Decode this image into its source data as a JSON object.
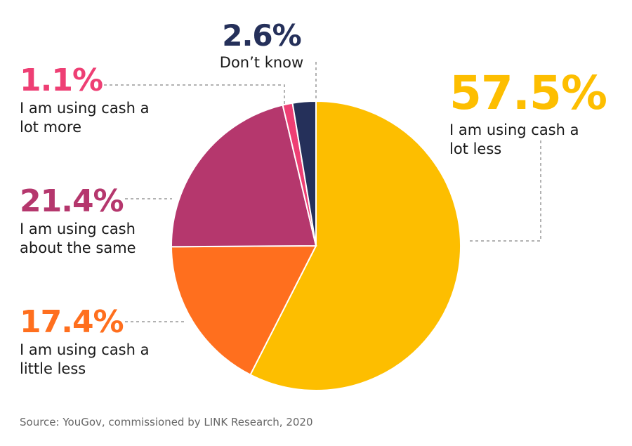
{
  "chart_data": {
    "type": "pie",
    "categories": [
      "I am using cash a lot less",
      "I am using cash a little less",
      "I am using cash about the same",
      "I am using cash a lot more",
      "Don’t know"
    ],
    "values": [
      57.5,
      17.4,
      21.4,
      1.1,
      2.6
    ],
    "value_labels": [
      "57.5%",
      "17.4%",
      "21.4%",
      "1.1%",
      "2.6%"
    ],
    "colors": [
      "#fdbe00",
      "#ff6f1e",
      "#b5376d",
      "#ee3f74",
      "#25305a"
    ],
    "source": "Source: YouGov, commissioned by LINK Research, 2020"
  }
}
